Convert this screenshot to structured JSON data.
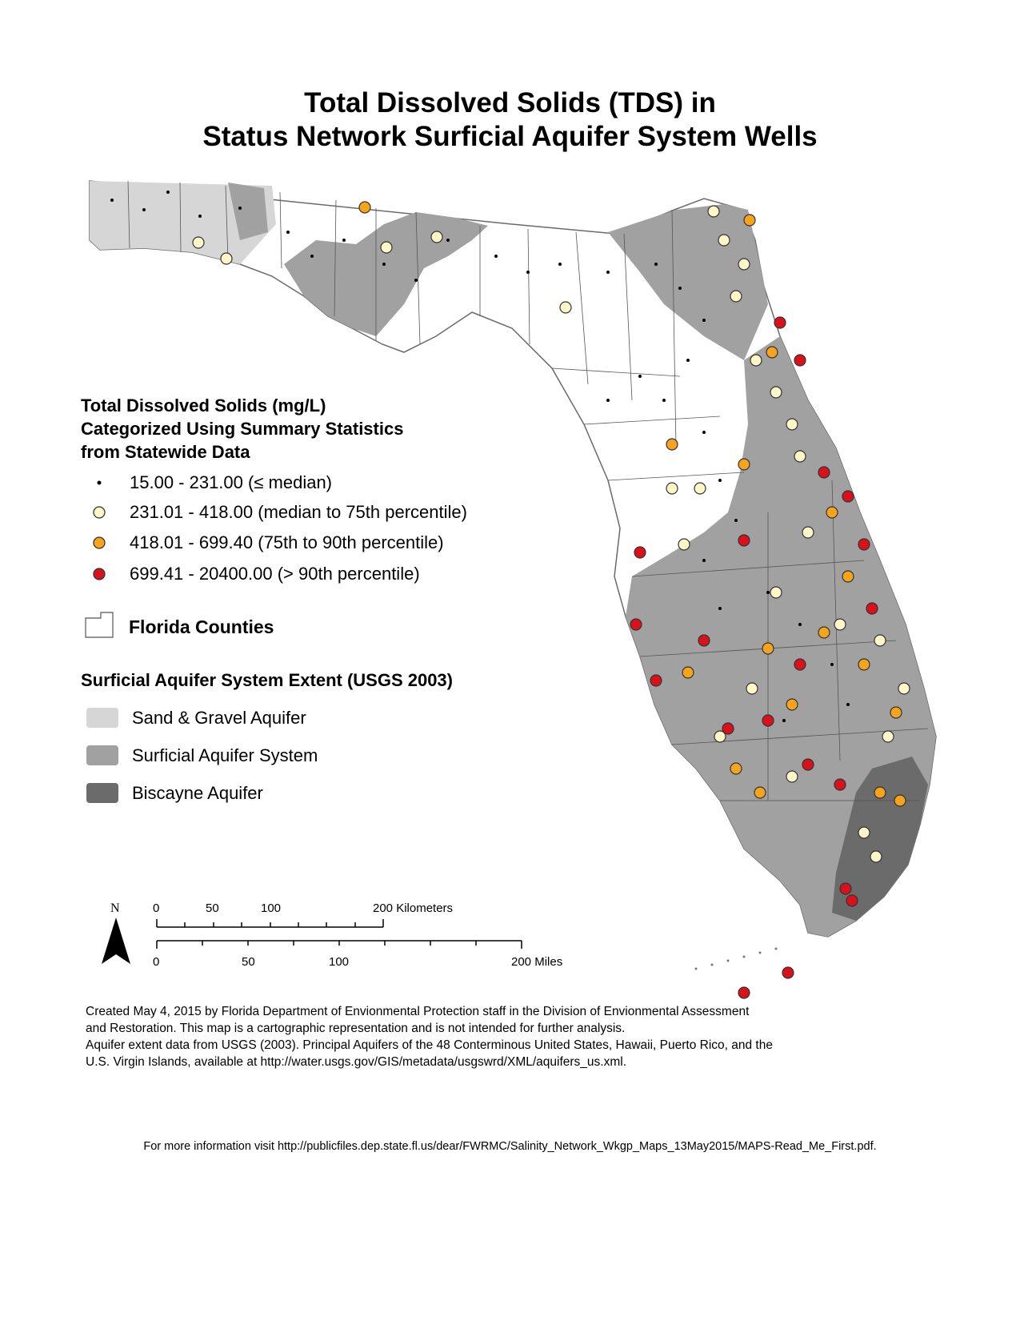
{
  "title": {
    "line1": "Total Dissolved Solids (TDS) in",
    "line2": "Status Network Surficial Aquifer System Wells"
  },
  "legend": {
    "tds_title_lines": [
      "Total Dissolved Solids (mg/L)",
      "Categorized Using Summary Statistics",
      "from Statewide Data"
    ],
    "tds_classes": [
      {
        "label": "15.00 - 231.00 (≤ median)",
        "color": "#000000",
        "symbol": "small-dot"
      },
      {
        "label": "231.01 - 418.00 (median to 75th percentile)",
        "color": "#fff7c8",
        "symbol": "circle"
      },
      {
        "label": "418.01 - 699.40 (75th to 90th percentile)",
        "color": "#f5a41c",
        "symbol": "circle"
      },
      {
        "label": "699.41 - 20400.00 (> 90th percentile)",
        "color": "#d8111a",
        "symbol": "circle"
      }
    ],
    "counties_label": "Florida Counties",
    "aquifer_title": "Surficial Aquifer System Extent (USGS 2003)",
    "aquifers": [
      {
        "label": "Sand & Gravel Aquifer",
        "color": "#d6d6d6"
      },
      {
        "label": "Surficial Aquifer System",
        "color": "#a1a1a1"
      },
      {
        "label": "Biscayne Aquifer",
        "color": "#6b6b6b"
      }
    ]
  },
  "scale_bar": {
    "north_label": "N",
    "km_ticks": [
      "0",
      "50",
      "100",
      "200 Kilometers"
    ],
    "mi_ticks": [
      "0",
      "50",
      "100",
      "200 Miles"
    ]
  },
  "credits": {
    "line1": "Created May 4, 2015 by Florida Department of Envionmental Protection staff in the Division of Envionmental Assessment",
    "line2": "and Restoration.  This map is a cartographic representation and is not intended for further analysis.",
    "line3": "Aquifer extent data from USGS (2003). Principal Aquifers of the 48 Conterminous United States, Hawaii, Puerto Rico, and the",
    "line4": "U.S. Virgin Islands, available at http://water.usgs.gov/GIS/metadata/usgswrd/XML/aquifers_us.xml."
  },
  "more_info": "For more information visit http://publicfiles.dep.state.fl.us/dear/FWRMC/Salinity_Network_Wkgp_Maps_13May2015/MAPS-Read_Me_First.pdf."
}
